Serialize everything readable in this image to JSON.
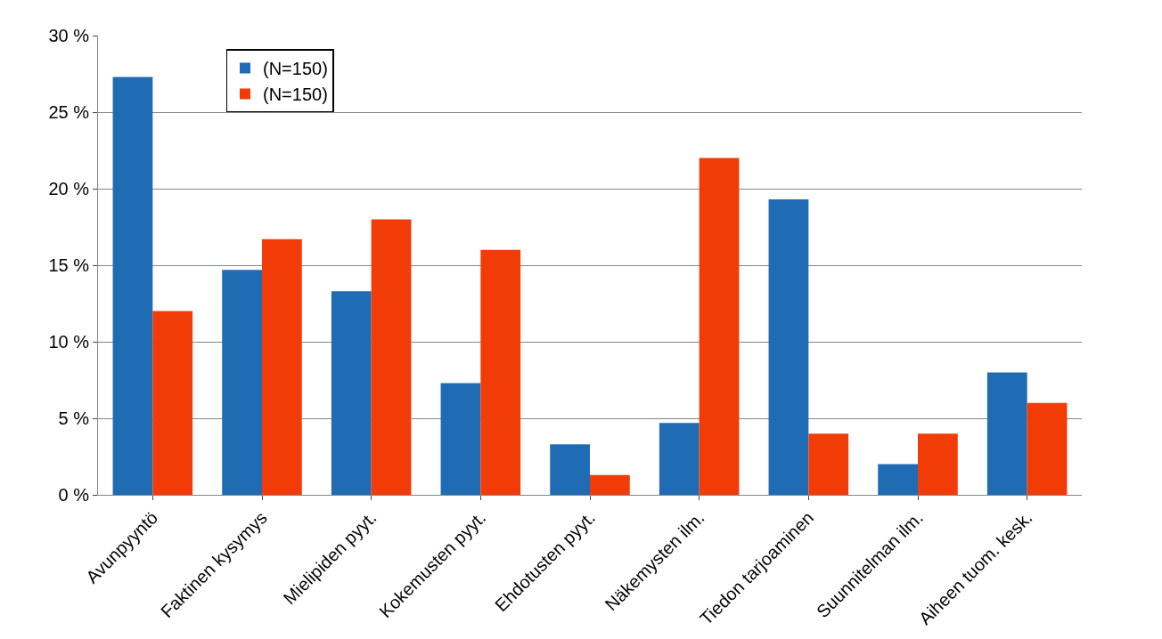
{
  "chart_data": {
    "type": "bar",
    "categories": [
      "Avunpyyntö",
      "Faktinen kysymys",
      "Mielipiden pyyt.",
      "Kokemusten pyyt.",
      "Ehdotusten pyyt.",
      "Näkemysten ilm.",
      "Tiedon tarjoaminen",
      "Suunnitelman ilm.",
      "Aiheen tuom. kesk."
    ],
    "series": [
      {
        "name": "(N=150)",
        "color": "#1f6bb4",
        "values": [
          27.3,
          14.7,
          13.3,
          7.3,
          3.3,
          4.7,
          19.3,
          2.0,
          8.0
        ]
      },
      {
        "name": "(N=150)",
        "color": "#f23c07",
        "values": [
          12.0,
          16.7,
          18.0,
          16.0,
          1.3,
          22.0,
          4.0,
          4.0,
          6.0
        ]
      }
    ],
    "ylim": [
      0,
      30
    ],
    "yticks": [
      {
        "value": 0,
        "label": "0 %"
      },
      {
        "value": 5,
        "label": "5 %"
      },
      {
        "value": 10,
        "label": "10 %"
      },
      {
        "value": 15,
        "label": "15 %"
      },
      {
        "value": 20,
        "label": "20 %"
      },
      {
        "value": 25,
        "label": "25 %"
      },
      {
        "value": 30,
        "label": "30 %"
      }
    ],
    "grid": "y",
    "legend": "top left"
  }
}
